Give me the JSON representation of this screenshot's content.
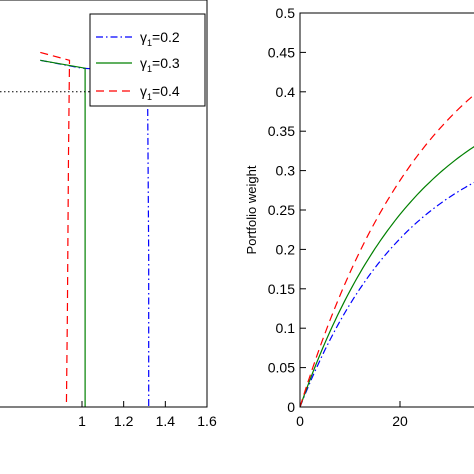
{
  "chart_data": [
    {
      "type": "line",
      "title": "",
      "xlabel": "",
      "ylabel": "",
      "xlim": [
        0.8,
        1.6
      ],
      "xticks": [
        1.0,
        1.2,
        1.4,
        1.6
      ],
      "xtick_labels": [
        "1",
        "1.2",
        "1.4",
        "1.6"
      ],
      "legend_position": "top-right",
      "series": [
        {
          "name": "γ1=0.2",
          "label_base": "γ",
          "label_sub": "1",
          "label_tail": "=0.2",
          "color": "#0000ff",
          "style": "dashdot",
          "x": [
            0.8,
            1.0,
            1.315,
            1.315,
            1.32,
            1.32
          ],
          "y": [
            0.44,
            0.43,
            0.425,
            0.4,
            0.19,
            0.0
          ]
        },
        {
          "name": "γ1=0.3",
          "label_base": "γ",
          "label_sub": "1",
          "label_tail": "=0.3",
          "color": "#008000",
          "style": "solid",
          "x": [
            0.8,
            1.015,
            1.015,
            1.015
          ],
          "y": [
            0.44,
            0.43,
            0.43,
            0.0
          ]
        },
        {
          "name": "γ1=0.4",
          "label_base": "γ",
          "label_sub": "1",
          "label_tail": "=0.4",
          "color": "#ff0000",
          "style": "dashed",
          "x": [
            0.8,
            0.94,
            0.935,
            0.93,
            0.925
          ],
          "y": [
            0.45,
            0.44,
            0.32,
            0.12,
            0.0
          ]
        }
      ],
      "reference_line": {
        "style": "dotted",
        "color": "#000000",
        "y": 0.4
      }
    },
    {
      "type": "line",
      "title": "",
      "xlabel": "",
      "ylabel": "Portfolio weight",
      "xlim": [
        0,
        50
      ],
      "ylim": [
        0,
        0.5
      ],
      "xticks": [
        0,
        20
      ],
      "xtick_labels": [
        "0",
        "20"
      ],
      "yticks": [
        0,
        0.05,
        0.1,
        0.15,
        0.2,
        0.25,
        0.3,
        0.35,
        0.4,
        0.45,
        0.5
      ],
      "ytick_labels": [
        "0",
        "0.05",
        "0.1",
        "0.15",
        "0.2",
        "0.25",
        "0.3",
        "0.35",
        "0.4",
        "0.45",
        "0.5"
      ],
      "series": [
        {
          "color": "#0000ff",
          "style": "dashdot",
          "asymptote": 0.36,
          "rate": 0.045
        },
        {
          "color": "#008000",
          "style": "solid",
          "asymptote": 0.43,
          "rate": 0.042
        },
        {
          "color": "#ff0000",
          "style": "dashed",
          "asymptote": 0.54,
          "rate": 0.038
        }
      ]
    }
  ]
}
